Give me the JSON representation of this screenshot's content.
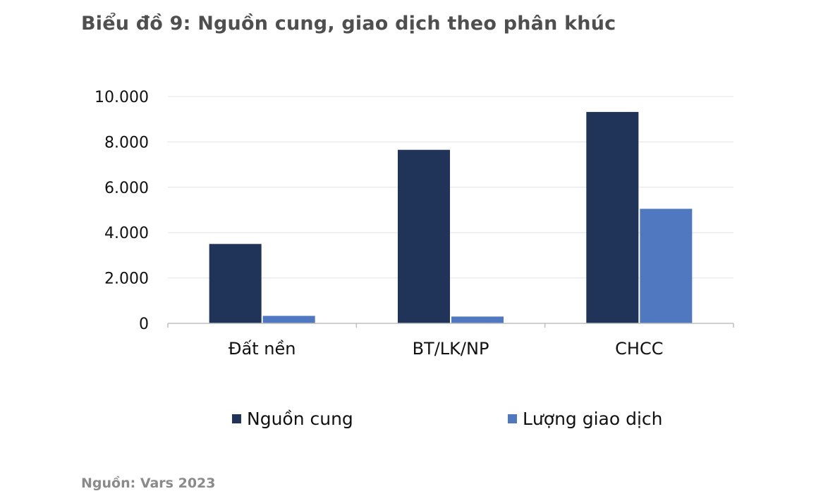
{
  "title": "Biểu đồ 9: Nguồn cung, giao dịch theo phân khúc",
  "source": "Nguồn: Vars 2023",
  "chart_data": {
    "type": "bar",
    "categories": [
      "Đất nền",
      "BT/LK/NP",
      "CHCC"
    ],
    "series": [
      {
        "name": "Nguồn cung",
        "color": "#203359",
        "values": [
          3500,
          7650,
          9320
        ]
      },
      {
        "name": "Lượng giao dịch",
        "color": "#4f78c1",
        "values": [
          330,
          300,
          5050
        ]
      }
    ],
    "ylim": [
      0,
      10000
    ],
    "yticks": [
      0,
      2000,
      4000,
      6000,
      8000,
      10000
    ],
    "ytick_labels": [
      "0",
      "2.000",
      "4.000",
      "6.000",
      "8.000",
      "10.000"
    ],
    "grid": true,
    "legend_position": "bottom"
  }
}
